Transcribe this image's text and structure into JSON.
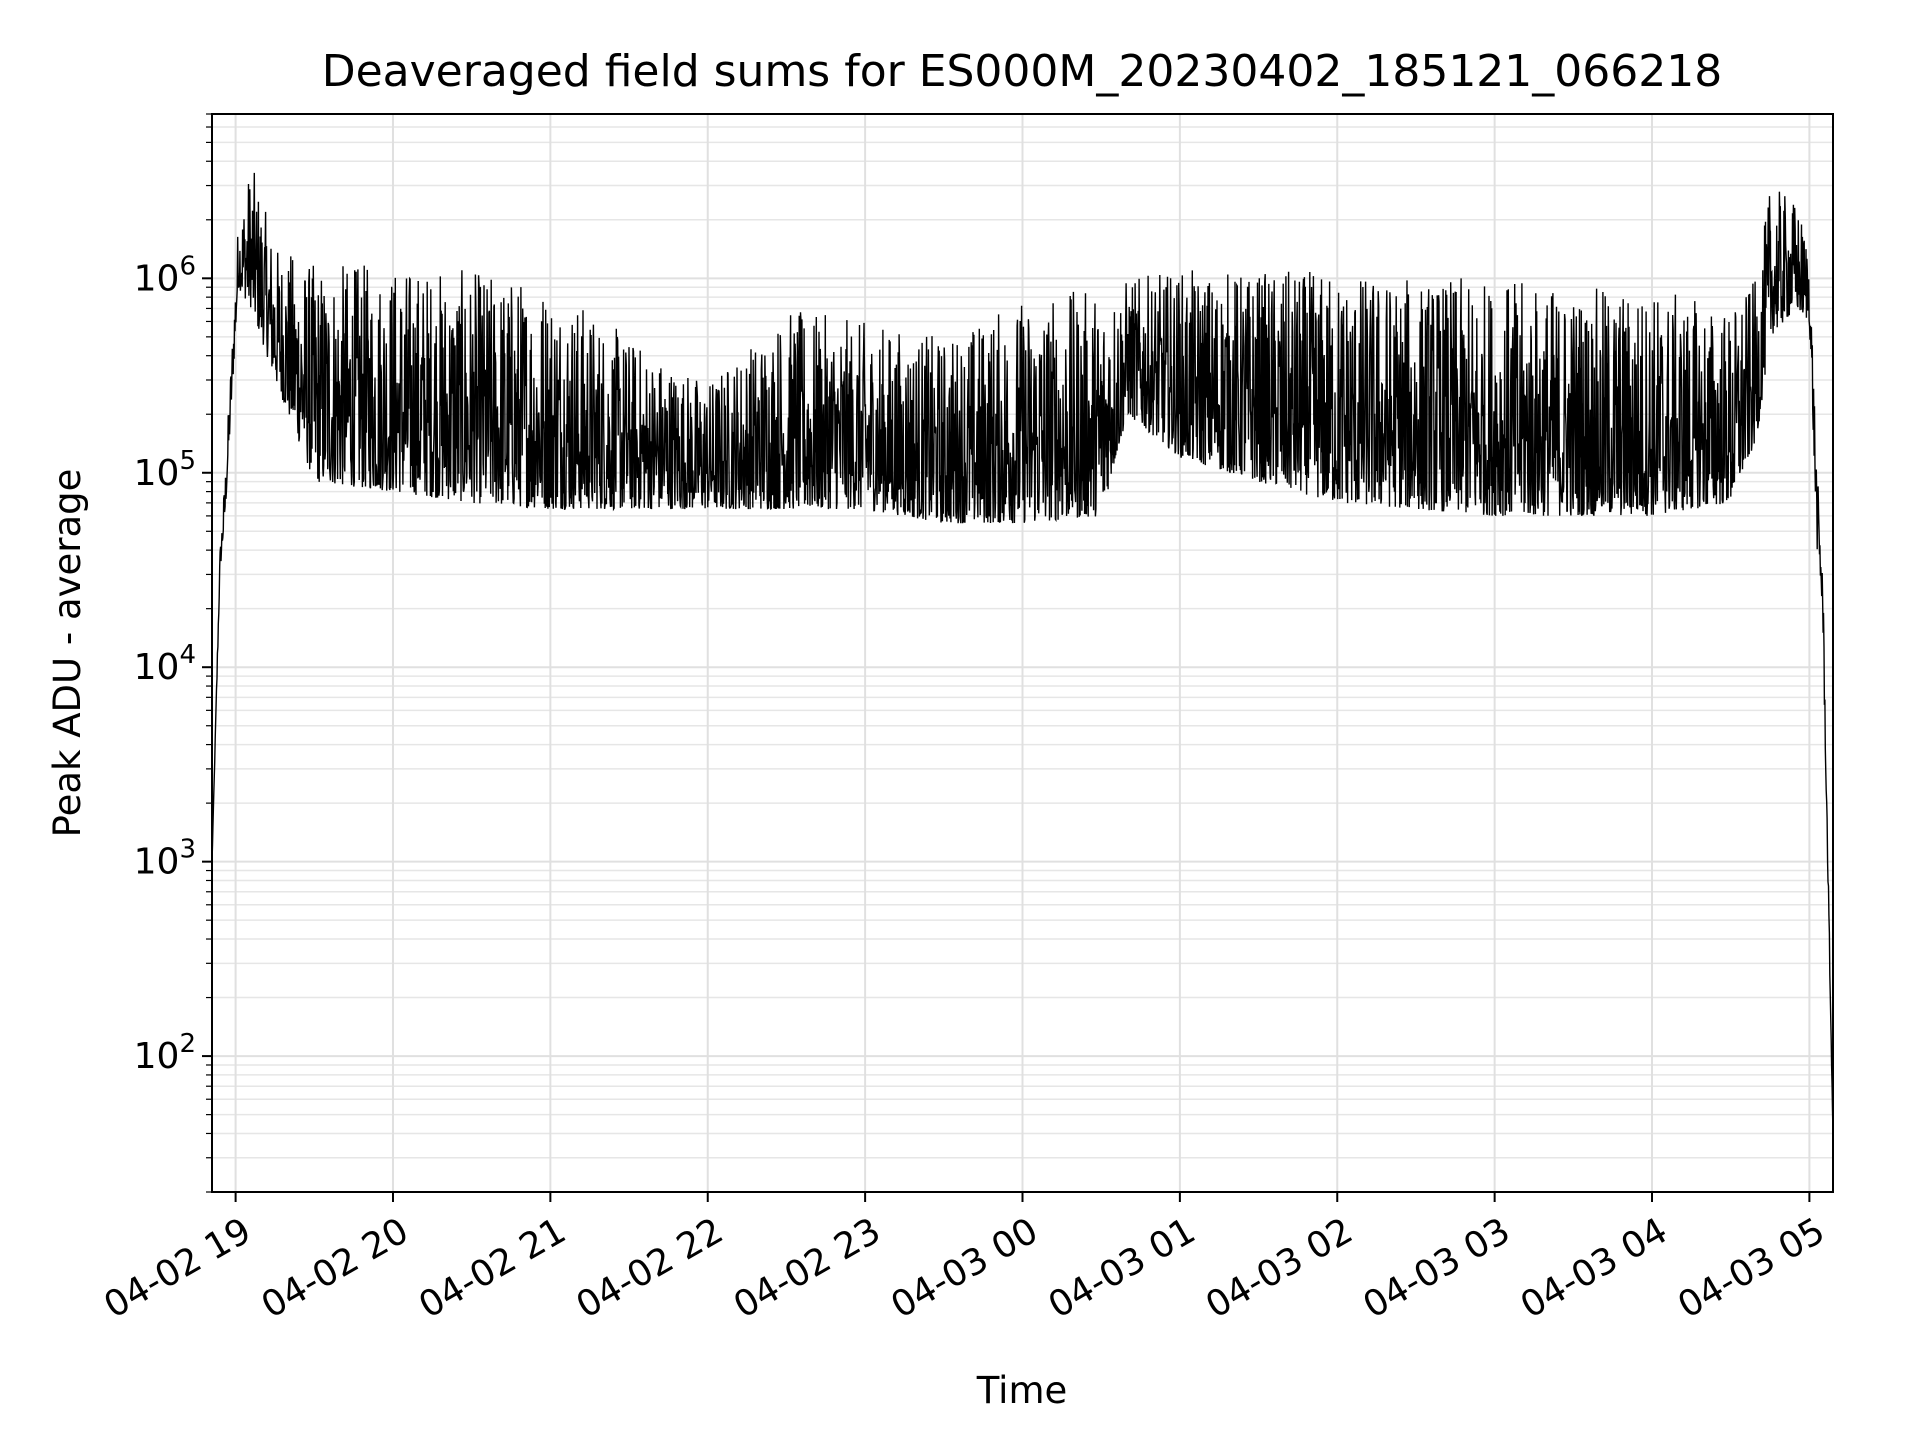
{
  "chart_data": {
    "type": "line",
    "title": "Deaveraged field sums for ES000M_20230402_185121_066218",
    "xlabel": "Time",
    "ylabel": "Peak ADU - average",
    "yscale": "log",
    "ylim": [
      20,
      7000000
    ],
    "xlim": [
      "2023-04-02 18:51",
      "2023-04-03 05:09"
    ],
    "grid": true,
    "x_ticks": [
      {
        "label": "04-02 19",
        "time": "2023-04-02 19:00"
      },
      {
        "label": "04-02 20",
        "time": "2023-04-02 20:00"
      },
      {
        "label": "04-02 21",
        "time": "2023-04-02 21:00"
      },
      {
        "label": "04-02 22",
        "time": "2023-04-02 22:00"
      },
      {
        "label": "04-02 23",
        "time": "2023-04-02 23:00"
      },
      {
        "label": "04-03 00",
        "time": "2023-04-03 00:00"
      },
      {
        "label": "04-03 01",
        "time": "2023-04-03 01:00"
      },
      {
        "label": "04-03 02",
        "time": "2023-04-03 02:00"
      },
      {
        "label": "04-03 03",
        "time": "2023-04-03 03:00"
      },
      {
        "label": "04-03 04",
        "time": "2023-04-03 04:00"
      },
      {
        "label": "04-03 05",
        "time": "2023-04-03 05:00"
      }
    ],
    "y_ticks": [
      {
        "base": "10",
        "exp": "2",
        "value": 100
      },
      {
        "base": "10",
        "exp": "3",
        "value": 1000
      },
      {
        "base": "10",
        "exp": "4",
        "value": 10000
      },
      {
        "base": "10",
        "exp": "5",
        "value": 100000
      },
      {
        "base": "10",
        "exp": "6",
        "value": 1000000
      }
    ],
    "series": [
      {
        "color": "#000000",
        "envelope": [
          {
            "time": "2023-04-02 18:51",
            "low": 1000,
            "high": 1000
          },
          {
            "time": "2023-04-02 18:54",
            "low": 30000,
            "high": 40000
          },
          {
            "time": "2023-04-02 18:56",
            "low": 60000,
            "high": 100000
          },
          {
            "time": "2023-04-02 19:01",
            "low": 900000,
            "high": 2000000
          },
          {
            "time": "2023-04-02 19:06",
            "low": 700000,
            "high": 4000000
          },
          {
            "time": "2023-04-02 19:15",
            "low": 300000,
            "high": 1500000
          },
          {
            "time": "2023-04-02 19:30",
            "low": 90000,
            "high": 1200000
          },
          {
            "time": "2023-04-02 20:00",
            "low": 80000,
            "high": 1200000
          },
          {
            "time": "2023-04-02 20:30",
            "low": 70000,
            "high": 1100000
          },
          {
            "time": "2023-04-02 21:00",
            "low": 65000,
            "high": 1000000
          },
          {
            "time": "2023-04-02 21:30",
            "low": 65000,
            "high": 500000
          },
          {
            "time": "2023-04-02 22:00",
            "low": 65000,
            "high": 300000
          },
          {
            "time": "2023-04-02 22:30",
            "low": 65000,
            "high": 700000
          },
          {
            "time": "2023-04-02 23:00",
            "low": 65000,
            "high": 600000
          },
          {
            "time": "2023-04-02 23:30",
            "low": 55000,
            "high": 500000
          },
          {
            "time": "2023-04-03 00:00",
            "low": 55000,
            "high": 800000
          },
          {
            "time": "2023-04-03 00:30",
            "low": 60000,
            "high": 900000
          },
          {
            "time": "2023-04-03 00:40",
            "low": 200000,
            "high": 1000000
          },
          {
            "time": "2023-04-03 01:00",
            "low": 120000,
            "high": 1100000
          },
          {
            "time": "2023-04-03 01:30",
            "low": 90000,
            "high": 1100000
          },
          {
            "time": "2023-04-03 02:00",
            "low": 70000,
            "high": 1100000
          },
          {
            "time": "2023-04-03 02:30",
            "low": 65000,
            "high": 1000000
          },
          {
            "time": "2023-04-03 03:00",
            "low": 60000,
            "high": 1000000
          },
          {
            "time": "2023-04-03 03:30",
            "low": 60000,
            "high": 900000
          },
          {
            "time": "2023-04-03 04:00",
            "low": 60000,
            "high": 900000
          },
          {
            "time": "2023-04-03 04:30",
            "low": 70000,
            "high": 700000
          },
          {
            "time": "2023-04-03 04:40",
            "low": 150000,
            "high": 1000000
          },
          {
            "time": "2023-04-03 04:45",
            "low": 500000,
            "high": 3000000
          },
          {
            "time": "2023-04-03 04:55",
            "low": 700000,
            "high": 2500000
          },
          {
            "time": "2023-04-03 05:00",
            "low": 600000,
            "high": 1500000
          },
          {
            "time": "2023-04-03 05:03",
            "low": 40000,
            "high": 100000
          },
          {
            "time": "2023-04-03 05:05",
            "low": 20000,
            "high": 40000
          },
          {
            "time": "2023-04-03 05:09",
            "low": 40,
            "high": 40
          }
        ]
      }
    ]
  }
}
